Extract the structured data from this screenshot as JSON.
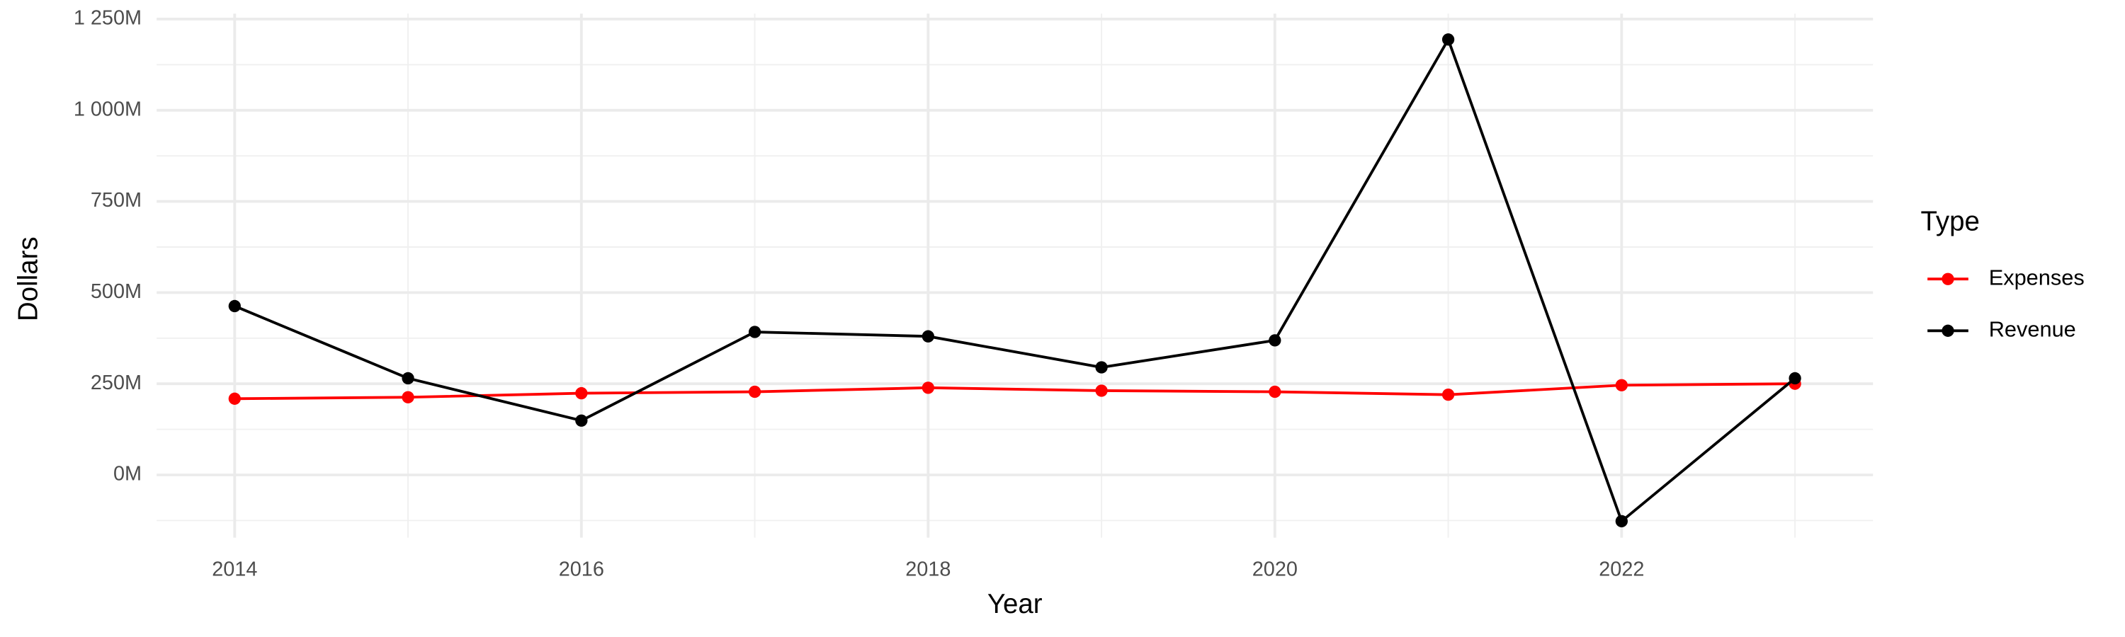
{
  "chart_data": {
    "type": "line",
    "x_label": "Year",
    "y_label": "Dollars",
    "x": [
      2014,
      2015,
      2016,
      2017,
      2018,
      2019,
      2020,
      2021,
      2022,
      2023
    ],
    "series": [
      {
        "name": "Expenses",
        "color": "#ff0000",
        "values": [
          209,
          213,
          224,
          228,
          239,
          231,
          228,
          220,
          246,
          250
        ]
      },
      {
        "name": "Revenue",
        "color": "#000000",
        "values": [
          463,
          265,
          149,
          392,
          380,
          295,
          369,
          1194,
          -127,
          265
        ]
      }
    ],
    "xlim": [
      2013.55,
      2023.45
    ],
    "xticks": [
      2014,
      2016,
      2018,
      2020,
      2022
    ],
    "x_minor_ticks": [
      2015,
      2017,
      2019,
      2021,
      2023
    ],
    "ylim": [
      -172,
      1265
    ],
    "yticks": [
      {
        "value": 0,
        "label": "0M"
      },
      {
        "value": 250,
        "label": "250M"
      },
      {
        "value": 500,
        "label": "500M"
      },
      {
        "value": 750,
        "label": "750M"
      },
      {
        "value": 1000,
        "label": "1 000M"
      },
      {
        "value": 1250,
        "label": "1 250M"
      }
    ],
    "y_minor_ticks": [
      -125,
      125,
      375,
      625,
      875,
      1125
    ],
    "grid": true,
    "legend": {
      "title": "Type",
      "position": "right"
    }
  }
}
